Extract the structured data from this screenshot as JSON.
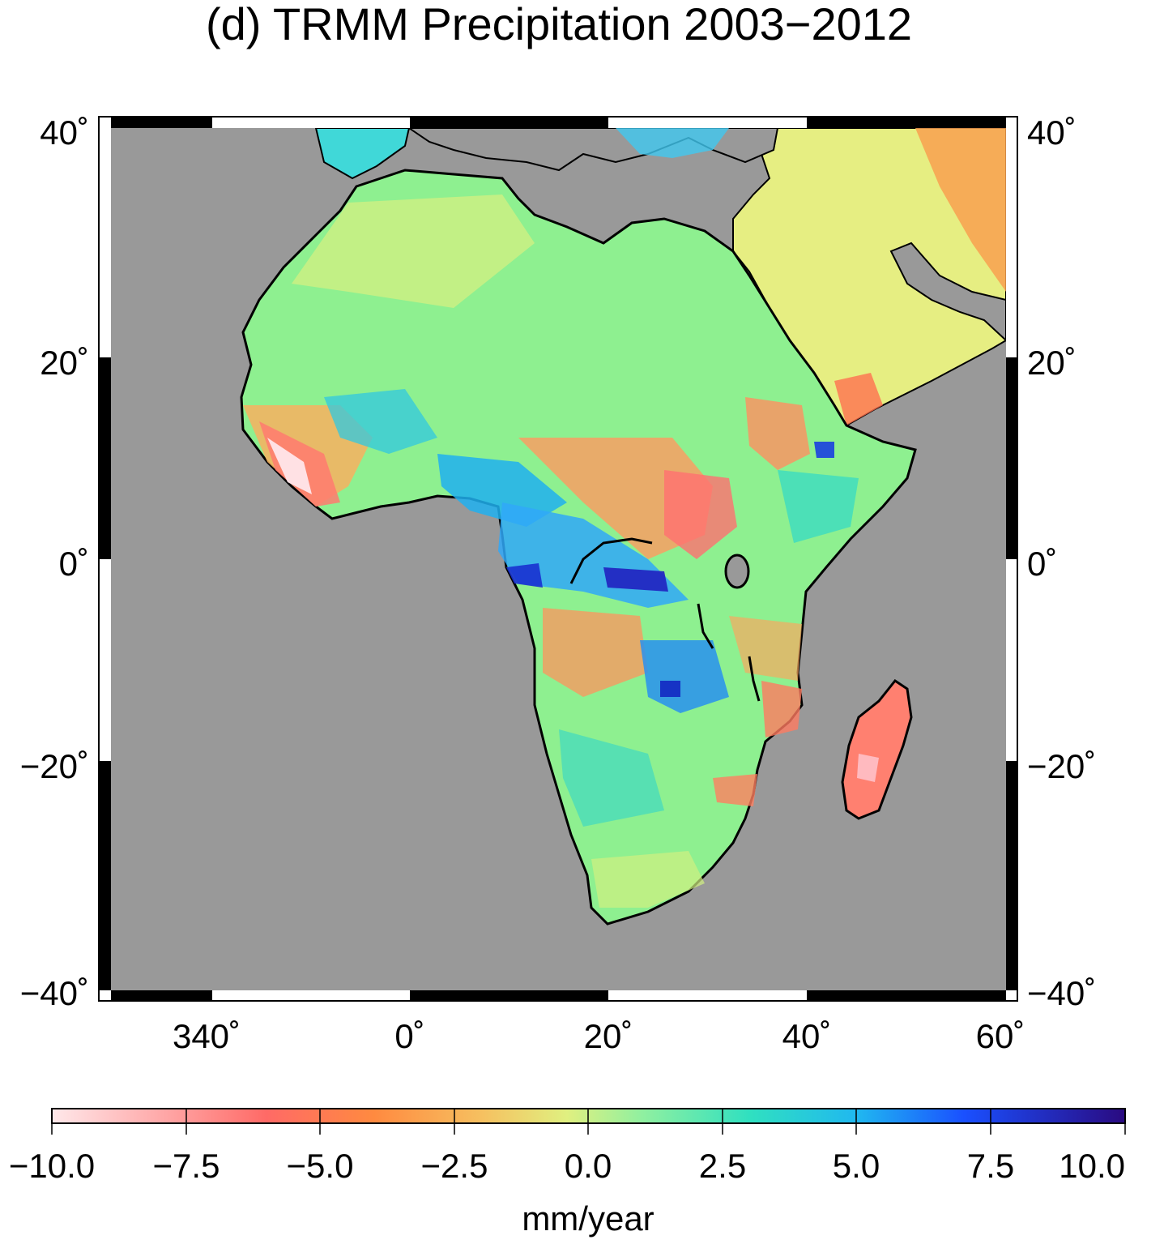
{
  "title": "(d) TRMM Precipitation 2003−2012",
  "lat_labels": [
    "40˚",
    "20˚",
    "0˚",
    "−20˚",
    "−40˚"
  ],
  "lon_labels": [
    "340˚",
    "0˚",
    "20˚",
    "40˚",
    "60˚"
  ],
  "colorbar": {
    "tick_labels": [
      "−10.0",
      "−7.5",
      "−5.0",
      "−2.5",
      "0.0",
      "2.5",
      "5.0",
      "7.5",
      "10.0"
    ],
    "unit": "mm/year",
    "range": [
      -10,
      10
    ],
    "colors": [
      "#ffe8ea",
      "#ff9a9a",
      "#ff6a55",
      "#ff9933",
      "#f4c65a",
      "#d9f07a",
      "#8ef090",
      "#30e0c0",
      "#20b8f0",
      "#1a60ff",
      "#1010c0",
      "#2a0a80"
    ]
  },
  "map": {
    "lon_range": [
      330,
      420
    ],
    "lat_range": [
      -40,
      40
    ],
    "ocean_color": "#999999",
    "land_base_color": "#8ef090",
    "arabia_color": "#e8e87a"
  }
}
